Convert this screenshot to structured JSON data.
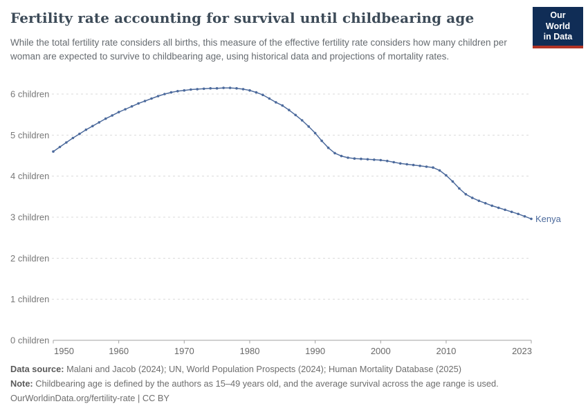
{
  "header": {
    "logo": {
      "line1": "Our World",
      "line2": "in Data",
      "bg_color": "#102d56",
      "accent_color": "#b13325"
    }
  },
  "chart_data": {
    "type": "line",
    "title": "Fertility rate accounting for survival until childbearing age",
    "subtitle": "While the total fertility rate considers all births, this measure of the effective fertility rate considers how many children per woman are expected to survive to childbearing age, using historical data and projections of mortality rates.",
    "xlim": [
      1950,
      2023
    ],
    "ylim": [
      0,
      6.5
    ],
    "grid": "horizontal-dashed",
    "legend_position": "line-end-label",
    "x_ticks": [
      1950,
      1960,
      1970,
      1980,
      1990,
      2000,
      2010,
      2023
    ],
    "y_ticks": [
      {
        "value": 0,
        "label": "0 children"
      },
      {
        "value": 1,
        "label": "1 children"
      },
      {
        "value": 2,
        "label": "2 children"
      },
      {
        "value": 3,
        "label": "3 children"
      },
      {
        "value": 4,
        "label": "4 children"
      },
      {
        "value": 5,
        "label": "5 children"
      },
      {
        "value": 6,
        "label": "6 children"
      }
    ],
    "series": [
      {
        "name": "Kenya",
        "color": "#4c6a9c",
        "x": [
          1950,
          1951,
          1952,
          1953,
          1954,
          1955,
          1956,
          1957,
          1958,
          1959,
          1960,
          1961,
          1962,
          1963,
          1964,
          1965,
          1966,
          1967,
          1968,
          1969,
          1970,
          1971,
          1972,
          1973,
          1974,
          1975,
          1976,
          1977,
          1978,
          1979,
          1980,
          1981,
          1982,
          1983,
          1984,
          1985,
          1986,
          1987,
          1988,
          1989,
          1990,
          1991,
          1992,
          1993,
          1994,
          1995,
          1996,
          1997,
          1998,
          1999,
          2000,
          2001,
          2002,
          2003,
          2004,
          2005,
          2006,
          2007,
          2008,
          2009,
          2010,
          2011,
          2012,
          2013,
          2014,
          2015,
          2016,
          2017,
          2018,
          2019,
          2020,
          2021,
          2022,
          2023
        ],
        "values": [
          4.6,
          4.71,
          4.82,
          4.93,
          5.03,
          5.13,
          5.22,
          5.31,
          5.4,
          5.48,
          5.56,
          5.63,
          5.7,
          5.77,
          5.83,
          5.89,
          5.95,
          6.0,
          6.04,
          6.07,
          6.09,
          6.11,
          6.12,
          6.13,
          6.14,
          6.14,
          6.15,
          6.15,
          6.14,
          6.12,
          6.09,
          6.04,
          5.98,
          5.89,
          5.8,
          5.72,
          5.61,
          5.49,
          5.36,
          5.21,
          5.05,
          4.86,
          4.69,
          4.56,
          4.49,
          4.45,
          4.43,
          4.42,
          4.41,
          4.4,
          4.39,
          4.37,
          4.34,
          4.31,
          4.29,
          4.27,
          4.25,
          4.23,
          4.21,
          4.14,
          4.02,
          3.87,
          3.7,
          3.56,
          3.47,
          3.4,
          3.34,
          3.28,
          3.23,
          3.18,
          3.13,
          3.08,
          3.02,
          2.96
        ]
      }
    ]
  },
  "footer": {
    "source_label": "Data source:",
    "source_text": " Malani and Jacob (2024); UN, World Population Prospects (2024); Human Mortality Database (2025)",
    "note_label": "Note:",
    "note_text": " Childbearing age is defined by the authors as 15–49 years old, and the average survival across the age range is used.",
    "url_line": "OurWorldinData.org/fertility-rate | CC BY"
  }
}
